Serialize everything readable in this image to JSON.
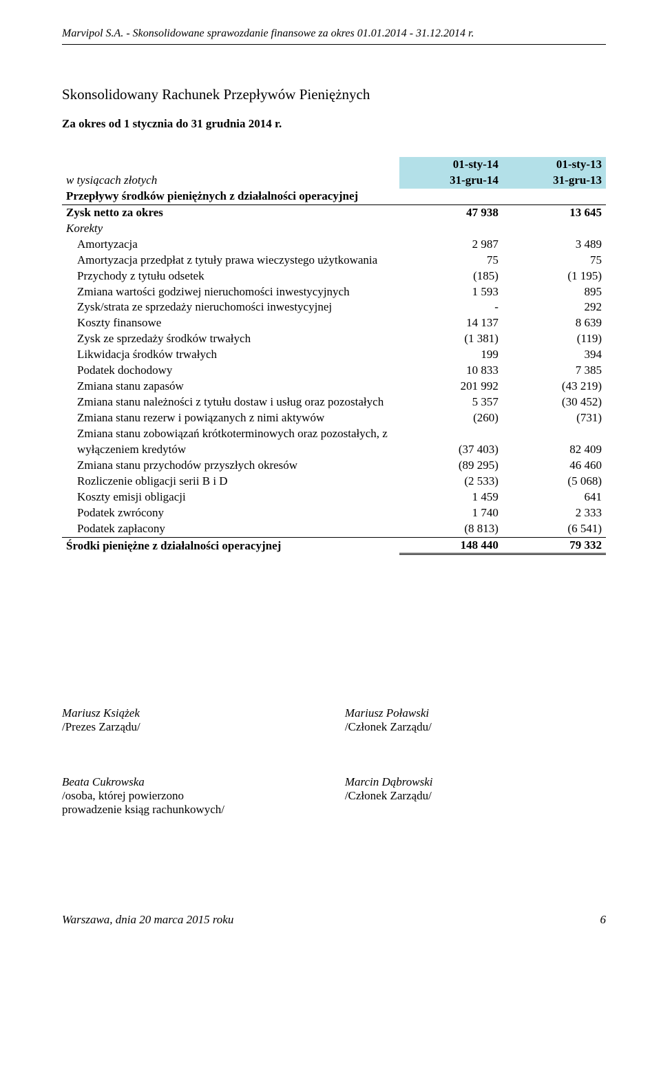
{
  "header": {
    "company_line": "Marvipol S.A. - Skonsolidowane sprawozdanie finansowe za okres 01.01.2014 - 31.12.2014 r."
  },
  "title": "Skonsolidowany Rachunek Przepływów Pieniężnych",
  "subtitle": "Za okres od 1 stycznia do 31 grudnia 2014 r.",
  "table": {
    "unit_label": "w tysiącach złotych",
    "period_headers": {
      "col1_top": "01-sty-14",
      "col1_bot": "31-gru-14",
      "col2_top": "01-sty-13",
      "col2_bot": "31-gru-13",
      "header_bg": "#b3e0e8"
    },
    "section_title": "Przepływy środków pieniężnych z działalności operacyjnej",
    "rows": [
      {
        "label": "Zysk netto za okres",
        "v1": "47 938",
        "v2": "13 645",
        "style": "netto-top"
      },
      {
        "label": "Korekty",
        "v1": "",
        "v2": "",
        "style": "italic"
      },
      {
        "label": "Amortyzacja",
        "v1": "2 987",
        "v2": "3 489",
        "indent": true
      },
      {
        "label": "Amortyzacja przedpłat z tytuły prawa wieczystego użytkowania",
        "v1": "75",
        "v2": "75",
        "indent": true
      },
      {
        "label": "Przychody z tytułu odsetek",
        "v1": "(185)",
        "v2": "(1 195)",
        "indent": true
      },
      {
        "label": "Zmiana wartości godziwej nieruchomości inwestycyjnych",
        "v1": "1 593",
        "v2": "895",
        "indent": true
      },
      {
        "label": " Zysk/strata ze sprzedaży nieruchomości inwestycyjnej",
        "v1": "-",
        "v2": "292",
        "indent": true
      },
      {
        "label": "Koszty finansowe",
        "v1": "14 137",
        "v2": "8 639",
        "indent": true
      },
      {
        "label": "Zysk ze sprzedaży środków trwałych",
        "v1": "(1 381)",
        "v2": "(119)",
        "indent": true
      },
      {
        "label": "Likwidacja środków trwałych",
        "v1": "199",
        "v2": "394",
        "indent": true
      },
      {
        "label": "Podatek dochodowy",
        "v1": "10 833",
        "v2": "7 385",
        "indent": true
      },
      {
        "label": "Zmiana stanu zapasów",
        "v1": "201 992",
        "v2": "(43 219)",
        "indent": true
      },
      {
        "label": "Zmiana stanu należności z tytułu dostaw i usług oraz pozostałych",
        "v1": "5 357",
        "v2": "(30 452)",
        "indent": true
      },
      {
        "label": "Zmiana stanu rezerw i powiązanych z nimi aktywów",
        "v1": "(260)",
        "v2": "(731)",
        "indent": true
      },
      {
        "label": "Zmiana stanu zobowiązań krótkoterminowych oraz pozostałych, z wyłączeniem kredytów",
        "v1": "(37 403)",
        "v2": "82 409",
        "indent": true
      },
      {
        "label": "Zmiana stanu przychodów przyszłych okresów",
        "v1": "(89 295)",
        "v2": "46 460",
        "indent": true
      },
      {
        "label": "Rozliczenie obligacji serii B i D",
        "v1": "(2 533)",
        "v2": "(5 068)",
        "indent": true
      },
      {
        "label": "Koszty emisji obligacji",
        "v1": "1 459",
        "v2": "641",
        "indent": true
      },
      {
        "label": "Podatek zwrócony",
        "v1": "1 740",
        "v2": "2 333",
        "indent": true
      },
      {
        "label": "Podatek zapłacony",
        "v1": "(8 813)",
        "v2": "(6 541)",
        "indent": true
      }
    ],
    "total": {
      "label": "Środki pieniężne z działalności operacyjnej",
      "v1": "148 440",
      "v2": "79 332"
    },
    "col_widths": {
      "label_pct": 62,
      "val_pct": 19
    }
  },
  "signatures": {
    "row1": {
      "left": {
        "name": "Mariusz Książek",
        "role": "/Prezes Zarządu/"
      },
      "right": {
        "name": "Mariusz Poławski",
        "role": "/Członek Zarządu/"
      }
    },
    "row2": {
      "left": {
        "name": "Beata Cukrowska",
        "role1": "/osoba, której powierzono",
        "role2": "prowadzenie ksiąg rachunkowych/"
      },
      "right": {
        "name": "Marcin Dąbrowski",
        "role": "/Członek Zarządu/"
      }
    }
  },
  "footer": {
    "date": "Warszawa, dnia 20 marca 2015 roku",
    "page": "6"
  },
  "style": {
    "font_family": "Times New Roman",
    "base_fontsize": 17,
    "text_color": "#000000",
    "background": "#ffffff"
  }
}
